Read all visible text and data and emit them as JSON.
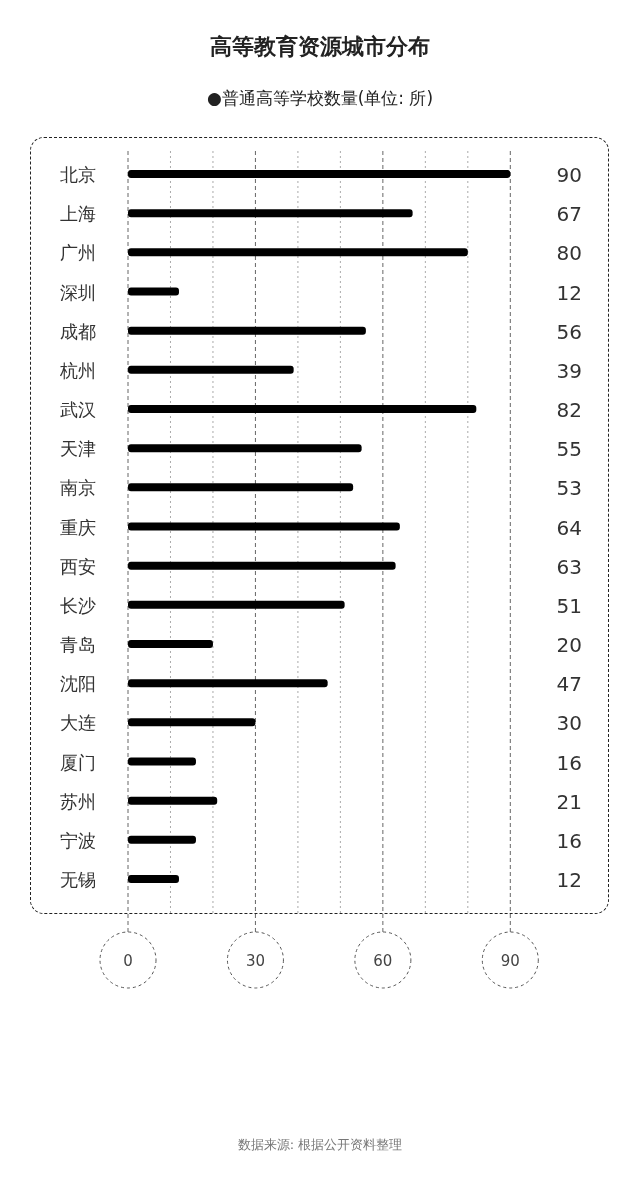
{
  "chart_data": {
    "type": "bar",
    "orientation": "horizontal",
    "title": "高等教育资源城市分布",
    "subtitle": "●普通高等学校数量(单位: 所)",
    "categories": [
      "北京",
      "上海",
      "广州",
      "深圳",
      "成都",
      "杭州",
      "武汉",
      "天津",
      "南京",
      "重庆",
      "西安",
      "长沙",
      "青岛",
      "沈阳",
      "大连",
      "厦门",
      "苏州",
      "宁波",
      "无锡"
    ],
    "values": [
      90,
      67,
      80,
      12,
      56,
      39,
      82,
      55,
      53,
      64,
      63,
      51,
      20,
      47,
      30,
      16,
      21,
      16,
      12
    ],
    "color": "#000000",
    "xlim": [
      0,
      113
    ],
    "xticks": [
      0,
      {
        "value": 10,
        "label": null
      },
      {
        "value": 20,
        "label": null
      },
      30,
      {
        "value": 40,
        "label": null
      },
      {
        "value": 50,
        "label": null
      },
      60,
      {
        "value": 70,
        "label": null
      },
      {
        "value": 80,
        "label": null
      },
      90
    ],
    "grid": "x",
    "data_labels": true,
    "annotations": [
      "数据来源: 根据公开资料整理"
    ]
  }
}
